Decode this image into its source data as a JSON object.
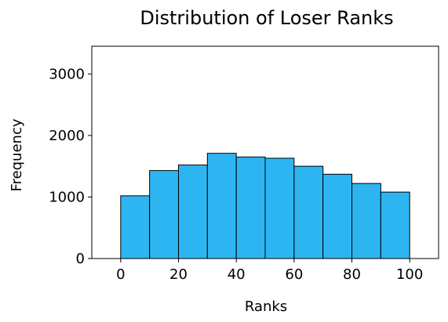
{
  "chart_data": {
    "type": "bar",
    "title": "Distribution of Loser Ranks",
    "xlabel": "Ranks",
    "ylabel": "Frequency",
    "bins": [
      {
        "start": 0,
        "end": 10,
        "value": 1020
      },
      {
        "start": 10,
        "end": 20,
        "value": 1430
      },
      {
        "start": 20,
        "end": 30,
        "value": 1520
      },
      {
        "start": 30,
        "end": 40,
        "value": 1710
      },
      {
        "start": 40,
        "end": 50,
        "value": 1650
      },
      {
        "start": 50,
        "end": 60,
        "value": 1630
      },
      {
        "start": 60,
        "end": 70,
        "value": 1500
      },
      {
        "start": 70,
        "end": 80,
        "value": 1370
      },
      {
        "start": 80,
        "end": 90,
        "value": 1220
      },
      {
        "start": 90,
        "end": 100,
        "value": 1080
      }
    ],
    "xlim": [
      -10,
      110
    ],
    "ylim": [
      0,
      3450
    ],
    "xticks": [
      0,
      20,
      40,
      60,
      80,
      100
    ],
    "yticks": [
      0,
      1000,
      2000,
      3000
    ],
    "grid": false,
    "bar_color": "#2db5f2",
    "edge_color": "#000000"
  }
}
